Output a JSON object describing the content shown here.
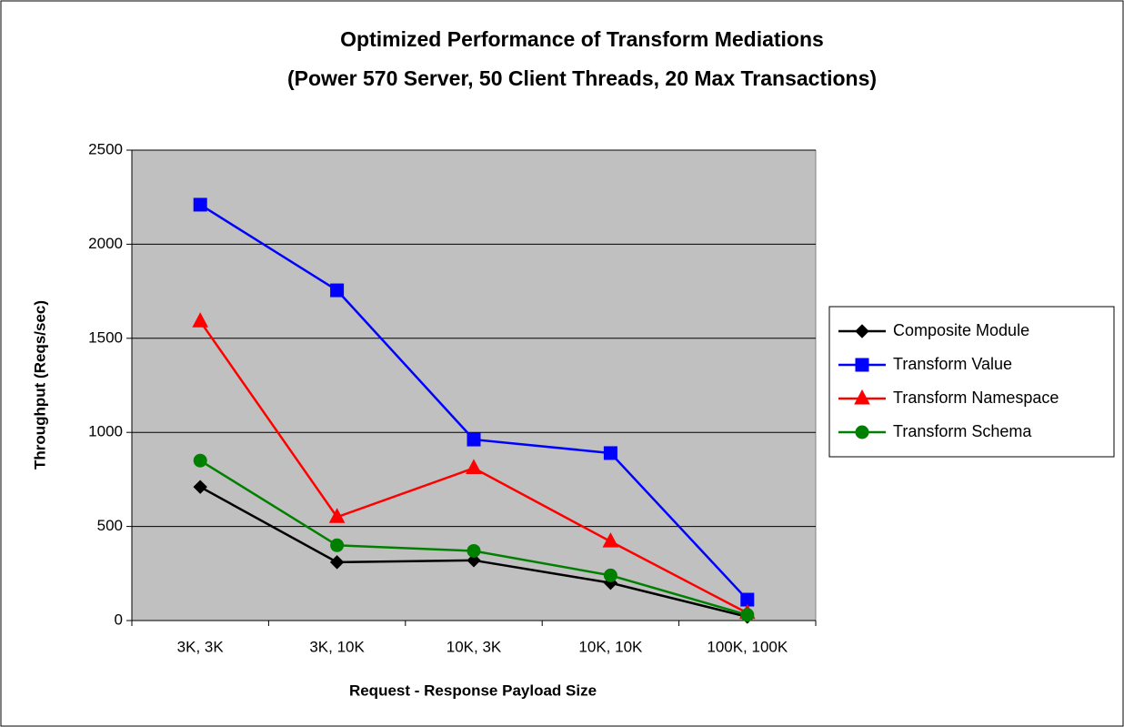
{
  "chart_data": {
    "type": "line",
    "title": "Optimized Performance of Transform Mediations",
    "subtitle": "(Power 570 Server, 50 Client Threads, 20 Max Transactions)",
    "x_label": "Request - Response Payload Size",
    "y_label": "Throughput (Reqs/sec)",
    "categories": [
      "3K, 3K",
      "3K, 10K",
      "10K, 3K",
      "10K, 10K",
      "100K, 100K"
    ],
    "series": [
      {
        "name": "Composite Module",
        "color": "#000000",
        "marker": "diamond",
        "values": [
          710,
          310,
          320,
          200,
          20
        ]
      },
      {
        "name": "Transform Value",
        "color": "#0000ff",
        "marker": "square",
        "values": [
          2210,
          1755,
          962,
          890,
          111
        ]
      },
      {
        "name": "Transform Namespace",
        "color": "#ff0000",
        "marker": "triangle",
        "values": [
          1590,
          550,
          810,
          420,
          40
        ]
      },
      {
        "name": "Transform Schema",
        "color": "#008000",
        "marker": "circle",
        "values": [
          850,
          400,
          370,
          240,
          30
        ]
      }
    ],
    "ylim": [
      0,
      2500
    ],
    "yticks": [
      0,
      500,
      1000,
      1500,
      2000,
      2500
    ],
    "grid": true,
    "plot_background": "#c0c0c0",
    "legend": "right"
  }
}
